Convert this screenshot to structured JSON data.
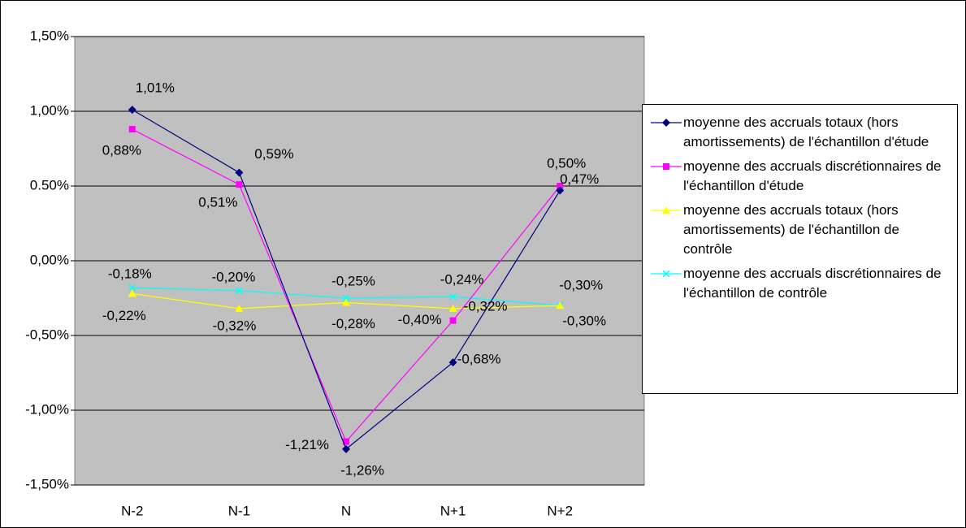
{
  "chart_data": {
    "type": "line",
    "categories": [
      "N-2",
      "N-1",
      "N",
      "N+1",
      "N+2"
    ],
    "series": [
      {
        "name": "moyenne des accruals totaux (hors amortissements) de l'échantillon d'étude",
        "color": "#000080",
        "marker": "diamond",
        "values": [
          1.01,
          0.59,
          -1.26,
          -0.68,
          0.47
        ],
        "value_labels": [
          "1,01%",
          "0,59%",
          "-1,26%",
          "-0,68%",
          "0,47%"
        ]
      },
      {
        "name": "moyenne des accruals discrétionnaires de l'échantillon d'étude",
        "color": "#ff00ff",
        "marker": "square",
        "values": [
          0.88,
          0.51,
          -1.21,
          -0.4,
          0.5
        ],
        "value_labels": [
          "0,88%",
          "0,51%",
          "-1,21%",
          "-0,40%",
          "0,50%"
        ]
      },
      {
        "name": "moyenne des accruals totaux (hors amortissements) de l'échantillon de contrôle",
        "color": "#ffff00",
        "marker": "triangle",
        "values": [
          -0.22,
          -0.32,
          -0.28,
          -0.32,
          -0.3
        ],
        "value_labels": [
          "-0,22%",
          "-0,32%",
          "-0,28%",
          "-0,32%",
          "-0,30%"
        ]
      },
      {
        "name": "moyenne des accruals discrétionnaires de l'échantillon de contrôle",
        "color": "#00ffff",
        "marker": "x",
        "values": [
          -0.18,
          -0.2,
          -0.25,
          -0.24,
          -0.3
        ],
        "value_labels": [
          "-0,18%",
          "-0,20%",
          "-0,25%",
          "-0,24%",
          "-0,30%"
        ]
      }
    ],
    "ylim": [
      -1.5,
      1.5
    ],
    "yticks": [
      {
        "value": -1.5,
        "label": "-1,50%"
      },
      {
        "value": -1,
        "label": "-1,00%"
      },
      {
        "value": -0.5,
        "label": "-0,50%"
      },
      {
        "value": 0,
        "label": "0,00%"
      },
      {
        "value": 0.5,
        "label": "0.50%"
      },
      {
        "value": 1,
        "label": "1,00%"
      },
      {
        "value": 1.5,
        "label": "1,50%"
      }
    ],
    "grid": true
  }
}
